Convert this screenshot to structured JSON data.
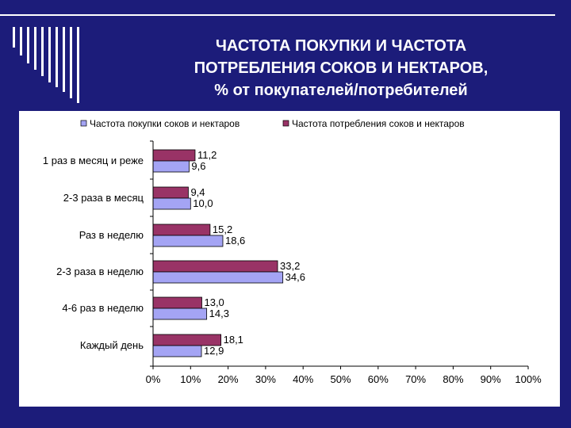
{
  "slide": {
    "title_line1": "ЧАСТОТА ПОКУПКИ И ЧАСТОТА",
    "title_line2": "ПОТРЕБЛЕНИЯ СОКОВ И НЕКТАРОВ,",
    "title_line3": "% от покупателей/потребителей",
    "background_color": "#1c1c7a"
  },
  "chart_data": {
    "type": "bar",
    "orientation": "horizontal",
    "title": "",
    "xlabel": "",
    "ylabel": "",
    "categories": [
      "1 раз в месяц и реже",
      "2-3 раза в месяц",
      "Раз в неделю",
      "2-3 раза в неделю",
      "4-6 раз в неделю",
      "Каждый день"
    ],
    "series": [
      {
        "name": "Частота покупки соков и нектаров",
        "color": "#a4a4f4",
        "values": [
          9.6,
          10.0,
          18.6,
          34.6,
          14.3,
          12.9
        ],
        "labels": [
          "9,6",
          "10,0",
          "18,6",
          "34,6",
          "14,3",
          "12,9"
        ]
      },
      {
        "name": "Частота потребления соков и нектаров",
        "color": "#993366",
        "values": [
          11.2,
          9.4,
          15.2,
          33.2,
          13.0,
          18.1
        ],
        "labels": [
          "11,2",
          "9,4",
          "15,2",
          "33,2",
          "13,0",
          "18,1"
        ]
      }
    ],
    "xlim": [
      0,
      100
    ],
    "ticks": [
      "0%",
      "10%",
      "20%",
      "30%",
      "40%",
      "50%",
      "60%",
      "70%",
      "80%",
      "90%",
      "100%"
    ],
    "grid": false,
    "legend_position": "top"
  }
}
